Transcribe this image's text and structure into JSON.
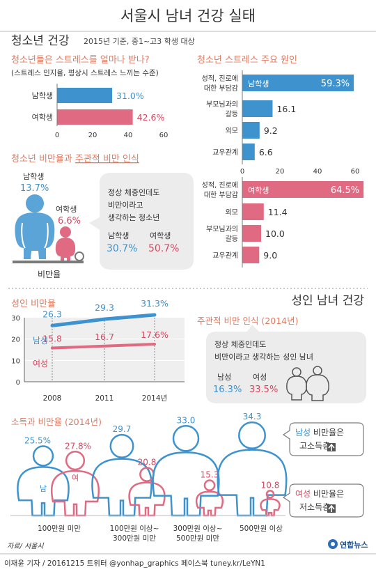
{
  "title": "서울시 남녀 건강 실태",
  "youth": {
    "section_title": "청소년 건강",
    "section_note": "2015년 기준, 중1~고3 학생 대상",
    "stress": {
      "question": "청소년들은 스트레스를 얼마나 받나?",
      "sub": "(스트레스 인지율, 평상시 스트레스 느끼는 수준)"
    },
    "causes_title": "청소년 스트레스 주요 원인",
    "obesity_title_a": "청소년 비만율과",
    "obesity_title_b": "주관적 비만 인식",
    "obesity": {
      "male_label": "남학생",
      "male_value": "13.7%",
      "female_label": "여학생",
      "female_value": "6.6%",
      "scale_label": "비만율",
      "bubble_lines": [
        "정상 체중인데도",
        "비만이라고",
        "생각하는 청소년"
      ],
      "bubble_male_label": "남학생",
      "bubble_male_value": "30.7%",
      "bubble_female_label": "여학생",
      "bubble_female_value": "50.7%"
    }
  },
  "adult": {
    "section_title": "성인 남녀 건강",
    "obesity_title": "성인 비만율",
    "perception": {
      "title": "주관적 비만 인식 (2014년)",
      "line1": "정상 체중인데도",
      "line2": "비만이라고 생각하는 성인 남녀",
      "male_label": "남성",
      "male_value": "16.3%",
      "female_label": "여성",
      "female_value": "33.5%"
    },
    "income_title": "소득과 비만율 (2014년)",
    "male_box": {
      "strong": "남성",
      "rest": " 비만율은",
      "line2": "고소득층"
    },
    "female_box": {
      "strong": "여성",
      "rest": " 비만율은",
      "line2": "저소득층"
    },
    "figure_male_text": "남",
    "figure_female_text": "여"
  },
  "footer": {
    "source": "자료/ 서울시",
    "credit": "이재윤 기자 / 20161215  트위터 @yonhap_graphics  페이스북 tuney.kr/LeYN1",
    "logo_text": "연합뉴스"
  },
  "colors": {
    "male": "#3e93cf",
    "female": "#e06a82",
    "female_text": "#d8465f",
    "accent_title": "#e07a60",
    "bubble": "#ececec",
    "box_border": "#7a7a7a"
  },
  "chart_data": [
    {
      "type": "bar",
      "title": "청소년들은 스트레스를 얼마나 받나?",
      "categories": [
        "남학생",
        "여학생"
      ],
      "values": [
        31.0,
        42.6
      ],
      "value_labels": [
        "31.0%",
        "42.6%"
      ],
      "xlim": [
        0,
        60
      ],
      "ticks": [
        "0",
        "20",
        "40",
        "60"
      ]
    },
    {
      "type": "bar",
      "title": "청소년 스트레스 주요 원인",
      "group": "남학생",
      "categories": [
        "성적, 진로에 대한 부담감",
        "부모님과의 갈등",
        "외모",
        "교우관계"
      ],
      "values": [
        59.3,
        16.1,
        9.2,
        6.6
      ],
      "value_labels": [
        "59.3%",
        "16.1",
        "9.2",
        "6.6"
      ],
      "xlim": [
        0,
        60
      ],
      "ticks": [
        "0",
        "20",
        "40",
        "60"
      ]
    },
    {
      "type": "bar",
      "title": "청소년 스트레스 주요 원인",
      "group": "여학생",
      "categories": [
        "성적, 진로에 대한 부담감",
        "외모",
        "부모님과의 갈등",
        "교우관계"
      ],
      "values": [
        64.5,
        11.4,
        10.0,
        9.0
      ],
      "value_labels": [
        "64.5%",
        "11.4",
        "10.0",
        "9.0"
      ],
      "xlim": [
        0,
        60
      ]
    },
    {
      "type": "line",
      "title": "성인 비만율",
      "x": [
        "2008",
        "2011",
        "2014년"
      ],
      "ylim": [
        0,
        30
      ],
      "yticks": [
        "0",
        "10",
        "20",
        "30"
      ],
      "series": [
        {
          "name": "남성",
          "values": [
            26.3,
            29.3,
            31.3
          ],
          "labels": [
            "26.3",
            "29.3",
            "31.3%"
          ]
        },
        {
          "name": "여성",
          "values": [
            15.8,
            16.7,
            17.6
          ],
          "labels": [
            "15.8",
            "16.7",
            "17.6%"
          ]
        }
      ]
    },
    {
      "type": "bar",
      "title": "소득과 비만율 (2014년)",
      "categories": [
        "100만원 미만",
        "100만원 이상~300만원 미만",
        "300만원 이상~500만원 미만",
        "500만원 이상"
      ],
      "category_lines": [
        [
          "100만원 미만"
        ],
        [
          "100만원 이상~",
          "300만원 미만"
        ],
        [
          "300만원 이상~",
          "500만원 미만"
        ],
        [
          "500만원 이상"
        ]
      ],
      "series": [
        {
          "name": "남",
          "values": [
            25.5,
            29.7,
            33.0,
            34.3
          ],
          "labels": [
            "25.5%",
            "29.7",
            "33.0",
            "34.3"
          ]
        },
        {
          "name": "여",
          "values": [
            27.8,
            20.8,
            15.3,
            10.8
          ],
          "labels": [
            "27.8%",
            "20.8",
            "15.3",
            "10.8"
          ]
        }
      ]
    }
  ]
}
